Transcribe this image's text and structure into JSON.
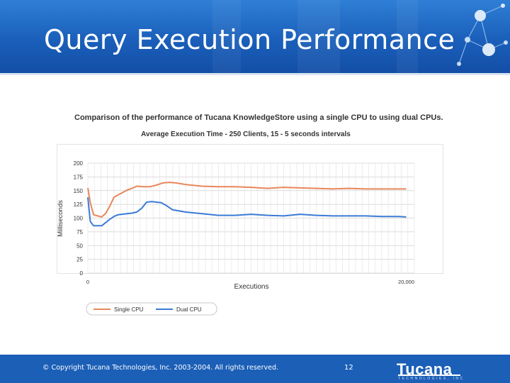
{
  "slide": {
    "title": "Query Execution Performance",
    "footer_copyright": "© Copyright Tucana Technologies, Inc. 2003-2004. All rights reserved.",
    "page_number": "12",
    "logo_text": "Tucana",
    "logo_subtext": "TECHNOLOGIES, INC"
  },
  "colors": {
    "header_blue": "#1f66c1",
    "single_cpu": "#e8875a",
    "dual_cpu": "#3a7bd5"
  },
  "chart_data": {
    "type": "line",
    "title": "Comparison of the performance of Tucana KnowledgeStore using a single CPU to using dual CPUs.",
    "subtitle": "Average Execution Time - 250 Clients, 15 - 5 seconds intervals",
    "xlabel": "Executions",
    "ylabel": "Milliseconds",
    "ylim": [
      0,
      200
    ],
    "yticks": [
      0,
      25,
      50,
      75,
      100,
      125,
      150,
      175,
      200
    ],
    "xlim": [
      0,
      20000
    ],
    "xtick_labels": [
      {
        "value": 0,
        "label": "0"
      },
      {
        "value": 20000,
        "label": "20,000"
      }
    ],
    "grid": true,
    "legend_position": "bottom-left",
    "series": [
      {
        "name": "Single CPU",
        "color": "#e8875a",
        "x": [
          0,
          150,
          350,
          600,
          850,
          1100,
          1350,
          1600,
          1850,
          2100,
          2400,
          2700,
          3000,
          3400,
          3800,
          4200,
          4600,
          5000,
          5400,
          6000,
          7000,
          8000,
          9000,
          10000,
          11000,
          12000,
          13000,
          14000,
          15000,
          16000,
          17000,
          18000,
          19000,
          19500
        ],
        "y": [
          155,
          128,
          106,
          104,
          102,
          109,
          122,
          138,
          142,
          146,
          151,
          154,
          158,
          157,
          157,
          160,
          164,
          165,
          164,
          161,
          158,
          157,
          157,
          156,
          154,
          156,
          155,
          154,
          153,
          154,
          153,
          153,
          153,
          153
        ]
      },
      {
        "name": "Dual CPU",
        "color": "#3a7bd5",
        "x": [
          0,
          150,
          350,
          600,
          850,
          1100,
          1350,
          1600,
          1850,
          2100,
          2400,
          2700,
          3000,
          3300,
          3600,
          3900,
          4200,
          4500,
          4800,
          5200,
          5600,
          6000,
          7000,
          8000,
          9000,
          10000,
          11000,
          12000,
          13000,
          14000,
          15000,
          16000,
          17000,
          18000,
          19000,
          19500
        ],
        "y": [
          138,
          94,
          86,
          86,
          86,
          92,
          98,
          103,
          106,
          107,
          108,
          109,
          111,
          118,
          129,
          130,
          129,
          128,
          123,
          115,
          113,
          111,
          108,
          105,
          105,
          107,
          105,
          104,
          107,
          105,
          104,
          104,
          104,
          103,
          103,
          102
        ]
      }
    ]
  }
}
